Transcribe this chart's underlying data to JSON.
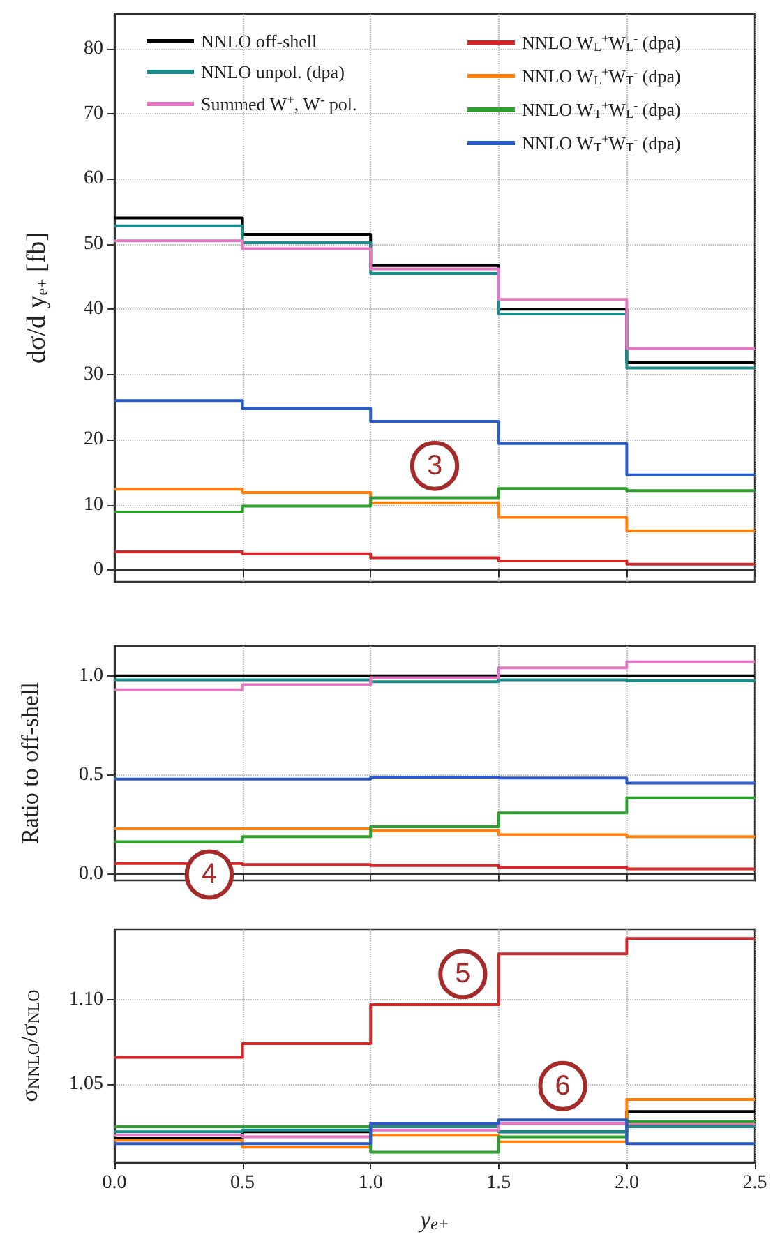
{
  "chart_data": [
    {
      "type": "step",
      "ylabel": "dσ/d y$_{e+}$ [fb]",
      "x": [
        0,
        0.5,
        1,
        1.5,
        2,
        2.5
      ],
      "xlim": [
        0,
        2.5
      ],
      "xticks": [
        0,
        0.5,
        1,
        1.5,
        2,
        2.5
      ],
      "ylim": [
        -1.8,
        85.3
      ],
      "yticks": [
        0,
        10,
        20,
        30,
        40,
        50,
        60,
        70,
        80
      ],
      "grid": true,
      "legend": "top",
      "tick_labels": "y",
      "annotations": [
        {
          "text": "3",
          "x": 1.25,
          "y": 16
        }
      ],
      "series": [
        {
          "name": "NNLO off-shell",
          "color": "#000000",
          "values": [
            54,
            51.5,
            46.7,
            40,
            31.8,
            31.8
          ]
        },
        {
          "name": "NNLO unpol. (dpa)",
          "color": "#1a8c8c",
          "values": [
            52.8,
            50.2,
            45.5,
            39.3,
            31,
            31
          ]
        },
        {
          "name": "Summed W$^{+}$, W$^{-}$ pol.",
          "color": "#e377c2",
          "values": [
            50.5,
            49.3,
            46.2,
            41.5,
            34,
            34
          ]
        },
        {
          "name": "NNLO W$_{L}$$^{+}$W$_{L}$$^{-}$ (dpa)",
          "color": "#d62728",
          "values": [
            2.8,
            2.5,
            1.9,
            1.4,
            0.9,
            0.9
          ]
        },
        {
          "name": "NNLO W$_{L}$$^{+}$W$_{T}$$^{-}$ (dpa)",
          "color": "#ff7f0e",
          "values": [
            12.4,
            11.9,
            10.3,
            8.1,
            6,
            6
          ]
        },
        {
          "name": "NNLO W$_{T}$$^{+}$W$_{L}$$^{-}$ (dpa)",
          "color": "#2ca02c",
          "values": [
            8.9,
            9.8,
            11.1,
            12.5,
            12.2,
            12.2
          ]
        },
        {
          "name": "NNLO W$_{T}$$^{+}$W$_{T}$$^{-}$ (dpa)",
          "color": "#2a5cc7",
          "values": [
            26,
            24.8,
            22.8,
            19.4,
            14.6,
            14.6
          ]
        }
      ]
    },
    {
      "type": "step",
      "ylabel": "Ratio to off-shell",
      "x": [
        0,
        0.5,
        1,
        1.5,
        2,
        2.5
      ],
      "xlim": [
        0,
        2.5
      ],
      "xticks": [
        0,
        0.5,
        1,
        1.5,
        2,
        2.5
      ],
      "ylim": [
        -0.03,
        1.15
      ],
      "yticks": [
        {
          "value": 0,
          "label": "0.0"
        },
        {
          "value": 0.5,
          "label": "0.5"
        },
        {
          "value": 1,
          "label": "1.0"
        }
      ],
      "grid": true,
      "tick_labels": "y",
      "annotations": [
        {
          "text": "4",
          "x": 0.37,
          "y": 0
        }
      ],
      "series": [
        {
          "color": "#000000",
          "values": [
            1,
            1,
            1,
            1,
            1,
            1
          ]
        },
        {
          "color": "#1a8c8c",
          "values": [
            0.98,
            0.98,
            0.97,
            0.98,
            0.975,
            0.975
          ]
        },
        {
          "color": "#e377c2",
          "values": [
            0.93,
            0.955,
            0.99,
            1.04,
            1.07,
            1.07
          ]
        },
        {
          "color": "#d62728",
          "values": [
            0.055,
            0.05,
            0.045,
            0.035,
            0.028,
            0.028
          ]
        },
        {
          "color": "#ff7f0e",
          "values": [
            0.23,
            0.23,
            0.22,
            0.2,
            0.19,
            0.19
          ]
        },
        {
          "color": "#2ca02c",
          "values": [
            0.165,
            0.19,
            0.24,
            0.31,
            0.385,
            0.385
          ]
        },
        {
          "color": "#2a5cc7",
          "values": [
            0.48,
            0.48,
            0.49,
            0.485,
            0.46,
            0.46
          ]
        }
      ]
    },
    {
      "type": "step",
      "xlabel": "y$_{e+}$",
      "ylabel": "σ$_{NNLO}$/σ$_{NLO}$",
      "x": [
        0,
        0.5,
        1,
        1.5,
        2,
        2.5
      ],
      "xlim": [
        0,
        2.5
      ],
      "xticks": [
        {
          "value": 0,
          "label": "0.0"
        },
        {
          "value": 0.5,
          "label": "0.5"
        },
        {
          "value": 1,
          "label": "1.0"
        },
        {
          "value": 1.5,
          "label": "1.5"
        },
        {
          "value": 2,
          "label": "2.0"
        },
        {
          "value": 2.5,
          "label": "2.5"
        }
      ],
      "ylim": [
        1.004,
        1.1415
      ],
      "yticks": [
        1.05,
        {
          "value": 1.1,
          "label": "1.10"
        }
      ],
      "grid": true,
      "annotations": [
        {
          "text": "5",
          "x": 1.36,
          "y": 1.115
        },
        {
          "text": "6",
          "x": 1.75,
          "y": 1.049
        }
      ],
      "series": [
        {
          "color": "#000000",
          "values": [
            1.018,
            1.022,
            1.026,
            1.022,
            1.034,
            1.034
          ]
        },
        {
          "color": "#1a8c8c",
          "values": [
            1.022,
            1.023,
            1.025,
            1.022,
            1.025,
            1.025
          ]
        },
        {
          "color": "#e377c2",
          "values": [
            1.02,
            1.019,
            1.023,
            1.027,
            1.027,
            1.027
          ]
        },
        {
          "color": "#d62728",
          "values": [
            1.066,
            1.074,
            1.097,
            1.127,
            1.136,
            1.136
          ]
        },
        {
          "color": "#ff7f0e",
          "values": [
            1.017,
            1.013,
            1.02,
            1.016,
            1.041,
            1.041
          ]
        },
        {
          "color": "#2ca02c",
          "values": [
            1.025,
            1.025,
            1.01,
            1.019,
            1.028,
            1.028
          ]
        },
        {
          "color": "#2a5cc7",
          "values": [
            1.015,
            1.015,
            1.027,
            1.029,
            1.015,
            1.015
          ]
        }
      ]
    }
  ]
}
